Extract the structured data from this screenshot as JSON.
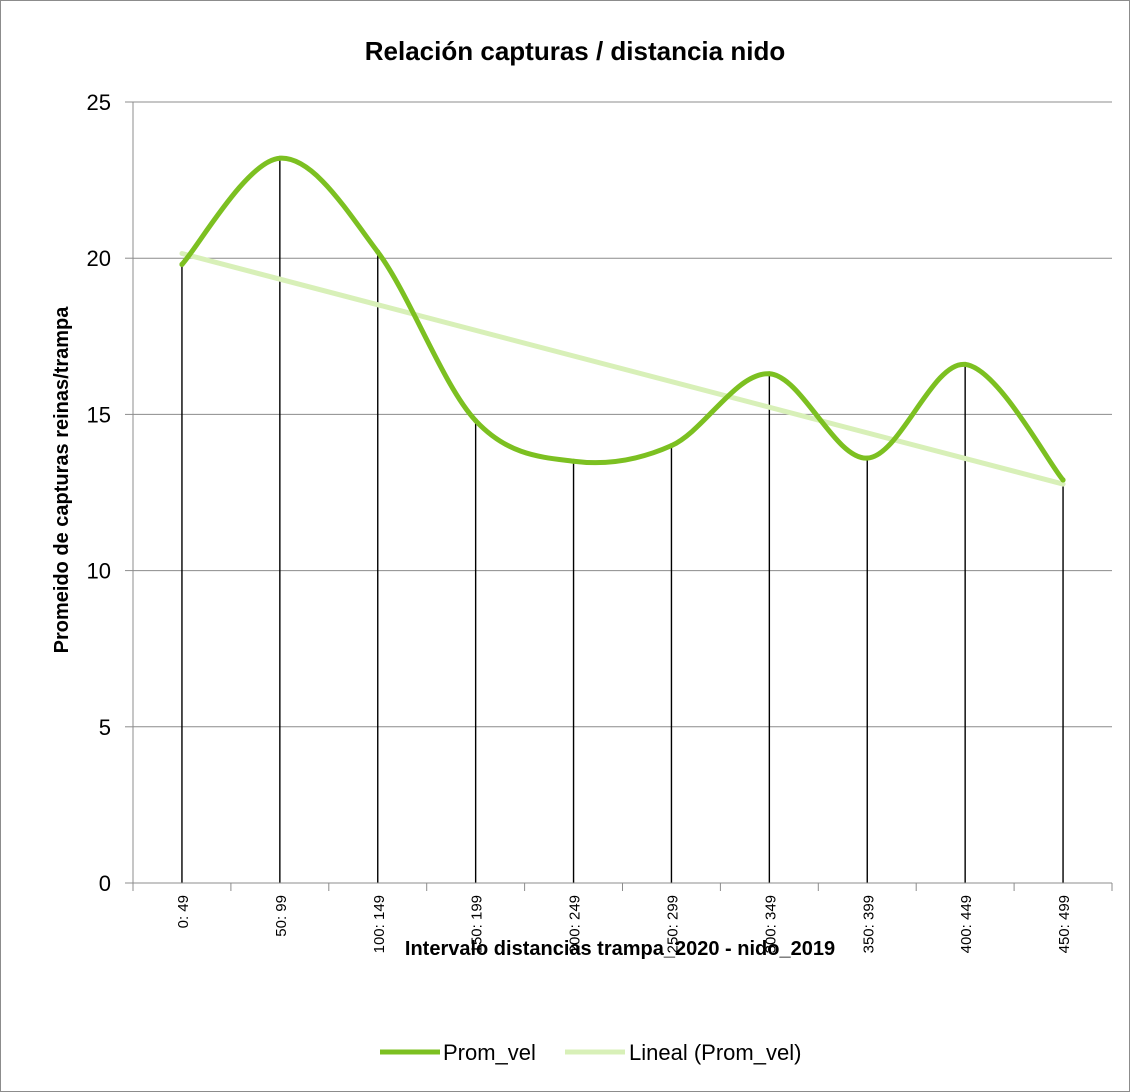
{
  "chart_data": {
    "type": "line",
    "title": "Relación capturas / distancia nido",
    "xlabel": "Intervalo distancias trampa_2020 - nido_2019",
    "ylabel": "Promeido de capturas reinas/trampa",
    "categories": [
      "0: 49",
      "50: 99",
      "100: 149",
      "150: 199",
      "200: 249",
      "250: 299",
      "300: 349",
      "350: 399",
      "400: 449",
      "450: 499"
    ],
    "series": [
      {
        "name": "Prom_vel",
        "values": [
          19.8,
          23.2,
          20.2,
          14.8,
          13.5,
          14.0,
          16.3,
          13.6,
          16.6,
          12.9
        ],
        "color": "#7cc021",
        "smooth": true
      },
      {
        "name": "Lineal (Prom_vel)",
        "type": "trendline",
        "values": [
          20.15,
          19.33,
          18.51,
          17.69,
          16.87,
          16.05,
          15.23,
          14.41,
          13.59,
          12.77
        ],
        "color": "#d8f0b8"
      }
    ],
    "ylim": [
      0,
      25
    ],
    "yticks": [
      0,
      5,
      10,
      15,
      20,
      25
    ],
    "grid": true,
    "drop_lines": true,
    "legend_position": "bottom"
  }
}
